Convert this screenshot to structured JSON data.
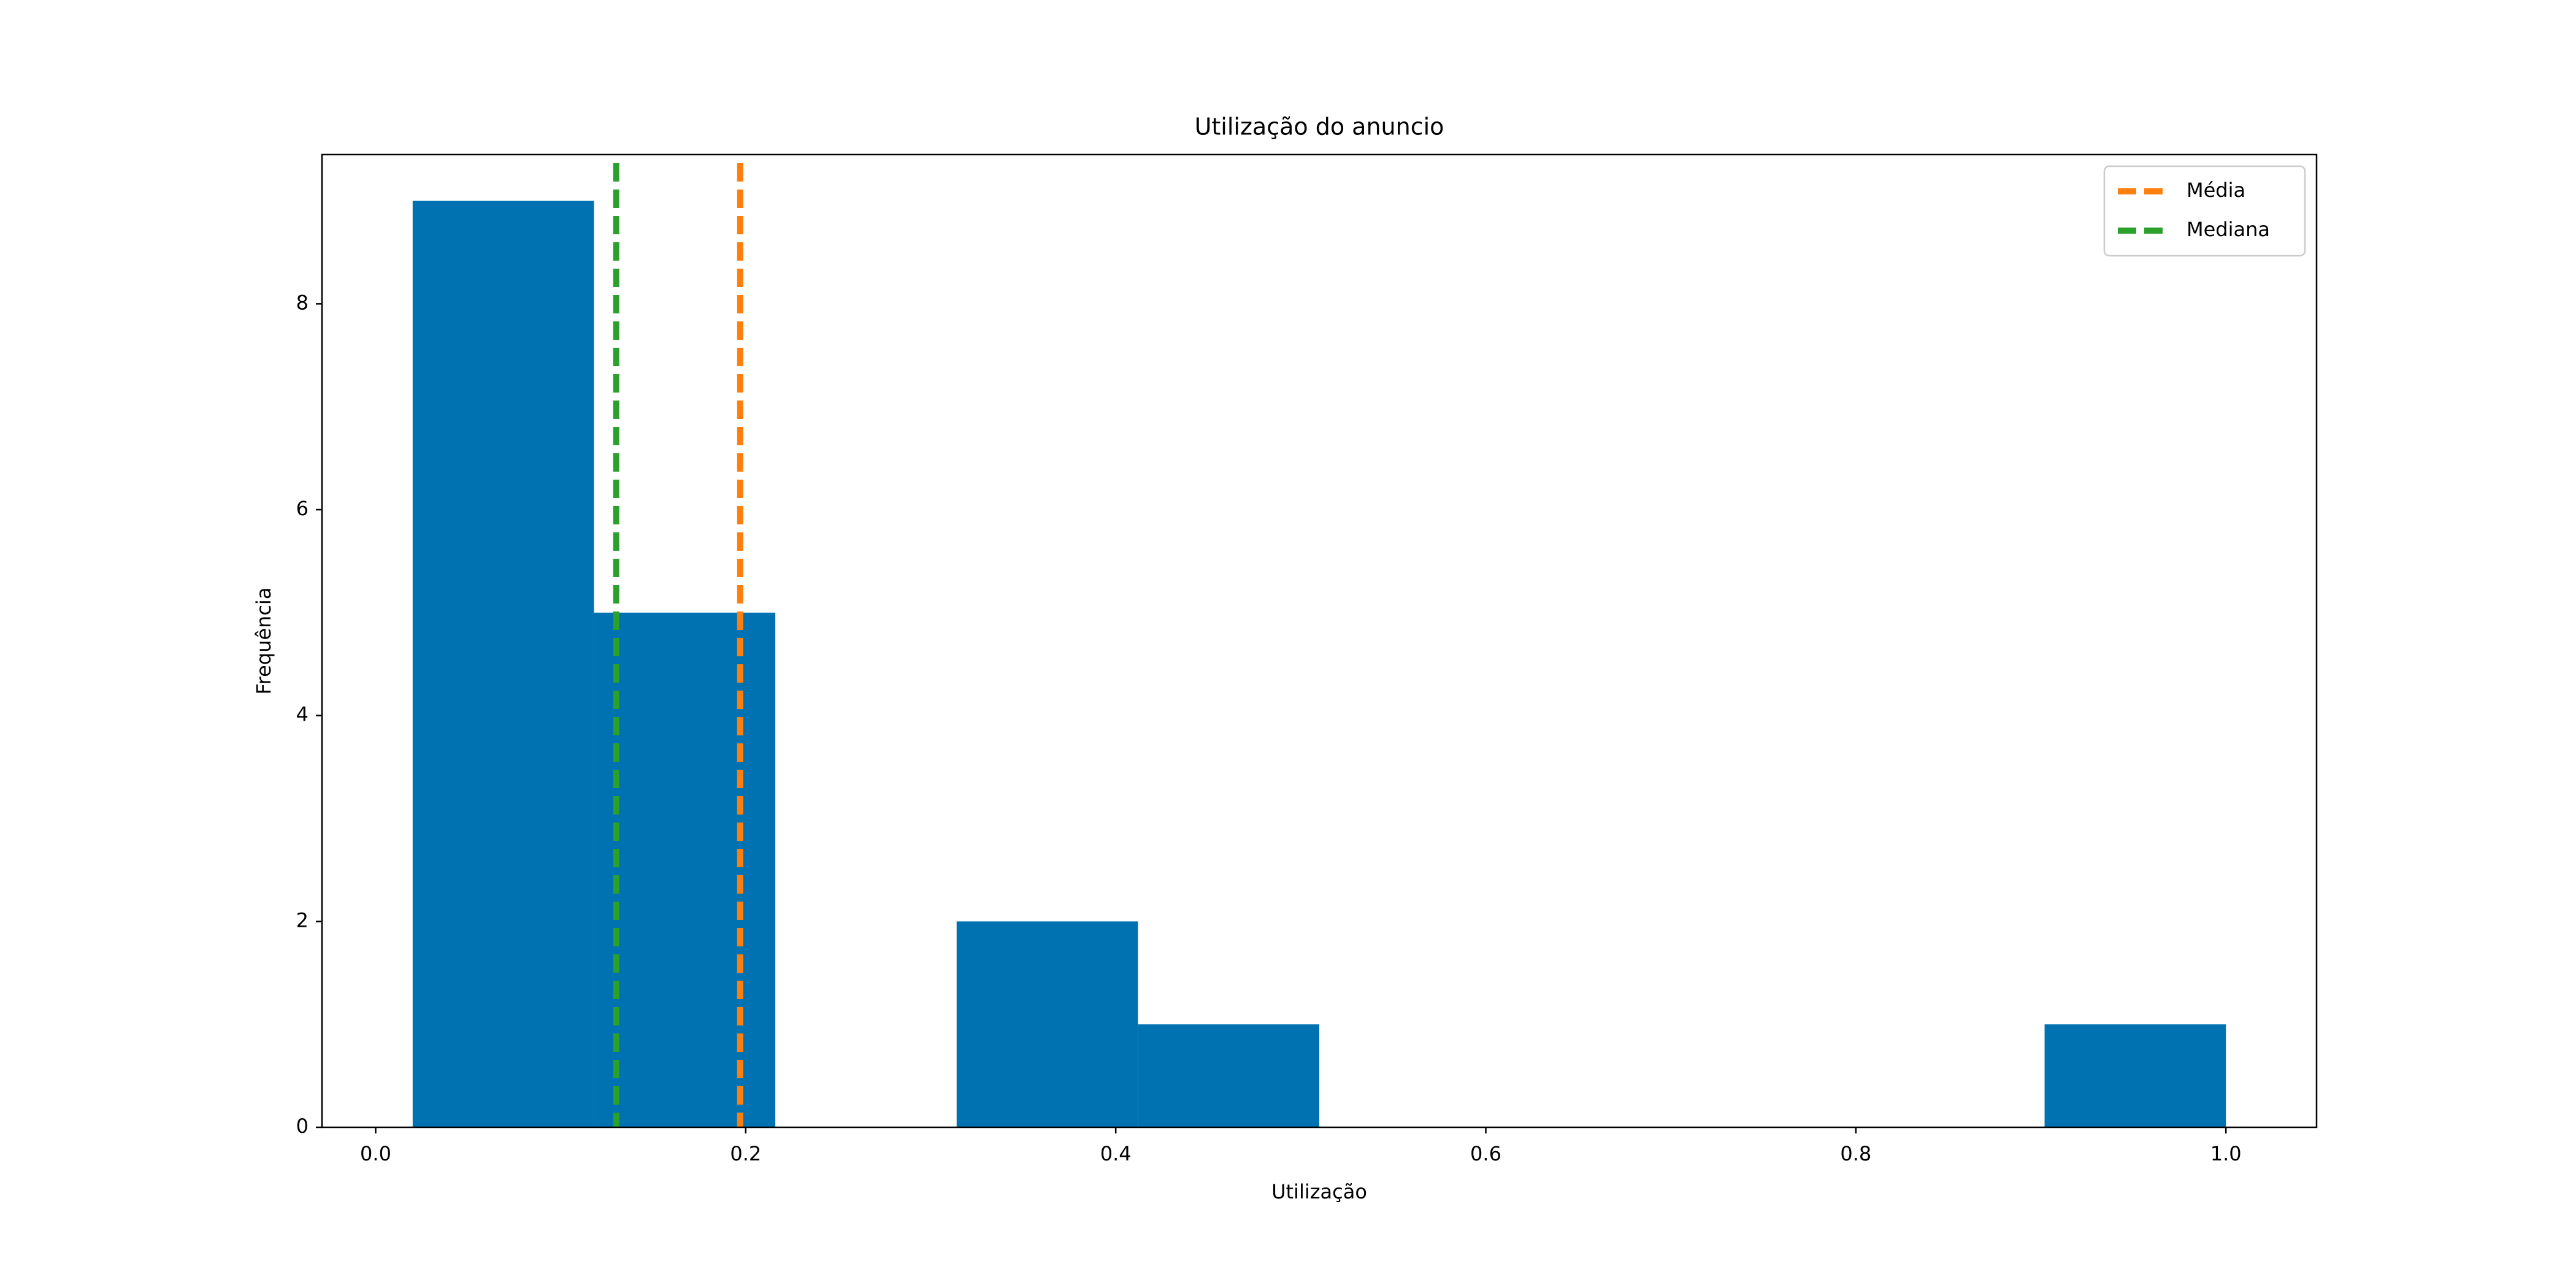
{
  "chart_data": {
    "type": "histogram",
    "title": "Utilização do anuncio",
    "x_label": "Utilização",
    "y_label": "Frequência",
    "bins": [
      0.02,
      0.118,
      0.216,
      0.314,
      0.412,
      0.51,
      0.608,
      0.706,
      0.804,
      0.902,
      1.0
    ],
    "counts": [
      9,
      5,
      0,
      2,
      1,
      0,
      0,
      0,
      0,
      1
    ],
    "color": "#0072b2",
    "xlim": [
      -0.029,
      1.049
    ],
    "ylim": [
      0,
      9.45
    ],
    "xticks": [
      {
        "value": 0,
        "label": "0.0"
      },
      0.2,
      0.4,
      0.6,
      0.8,
      {
        "value": 1,
        "label": "1.0"
      }
    ],
    "yticks": [
      0,
      2,
      4,
      6,
      8
    ],
    "lines": [
      {
        "name": "Média",
        "color": "#ff7f0e",
        "value": 0.197
      },
      {
        "name": "Mediana",
        "color": "#2ca02c",
        "value": 0.13
      }
    ],
    "legend": "upper right"
  }
}
